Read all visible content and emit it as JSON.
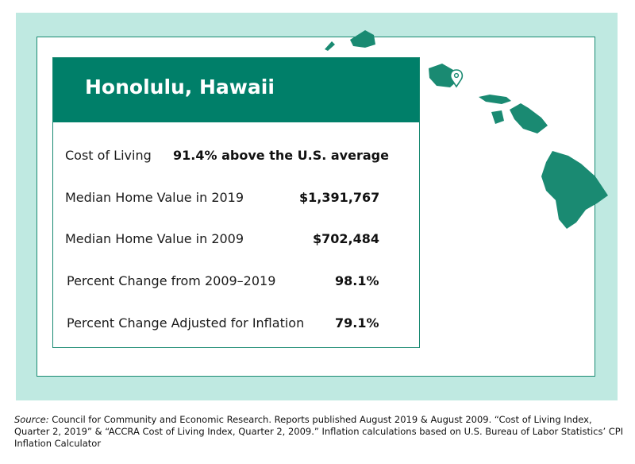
{
  "colors": {
    "frame_bg": "#bfe9e1",
    "accent_green": "#007f69",
    "island_green": "#1a8a72",
    "title_text": "#ffffff"
  },
  "card": {
    "title": "Honolulu, Hawaii",
    "rows": [
      {
        "label": "Cost of Living",
        "value": "91.4% above the U.S. average"
      },
      {
        "label": "Median Home Value in 2019",
        "value": "$1,391,767"
      },
      {
        "label": "Median Home Value in 2009",
        "value": "$702,484"
      },
      {
        "label": "Percent Change from 2009–2019",
        "value": "98.1%"
      },
      {
        "label": "Percent Change Adjusted for Inflation",
        "value": "79.1%"
      }
    ]
  },
  "map": {
    "icons": [
      "hawaii-islands-map",
      "location-pin-icon"
    ]
  },
  "source": {
    "label": "Source:",
    "text": " Council for Community and Economic Research. Reports published August 2019 & August 2009. “Cost of Living Index, Quarter 2, 2019” & “ACCRA Cost of Living Index, Quarter 2, 2009.” Inflation calculations based on U.S. Bureau of Labor Statistics’ CPI Inflation Calculator"
  }
}
